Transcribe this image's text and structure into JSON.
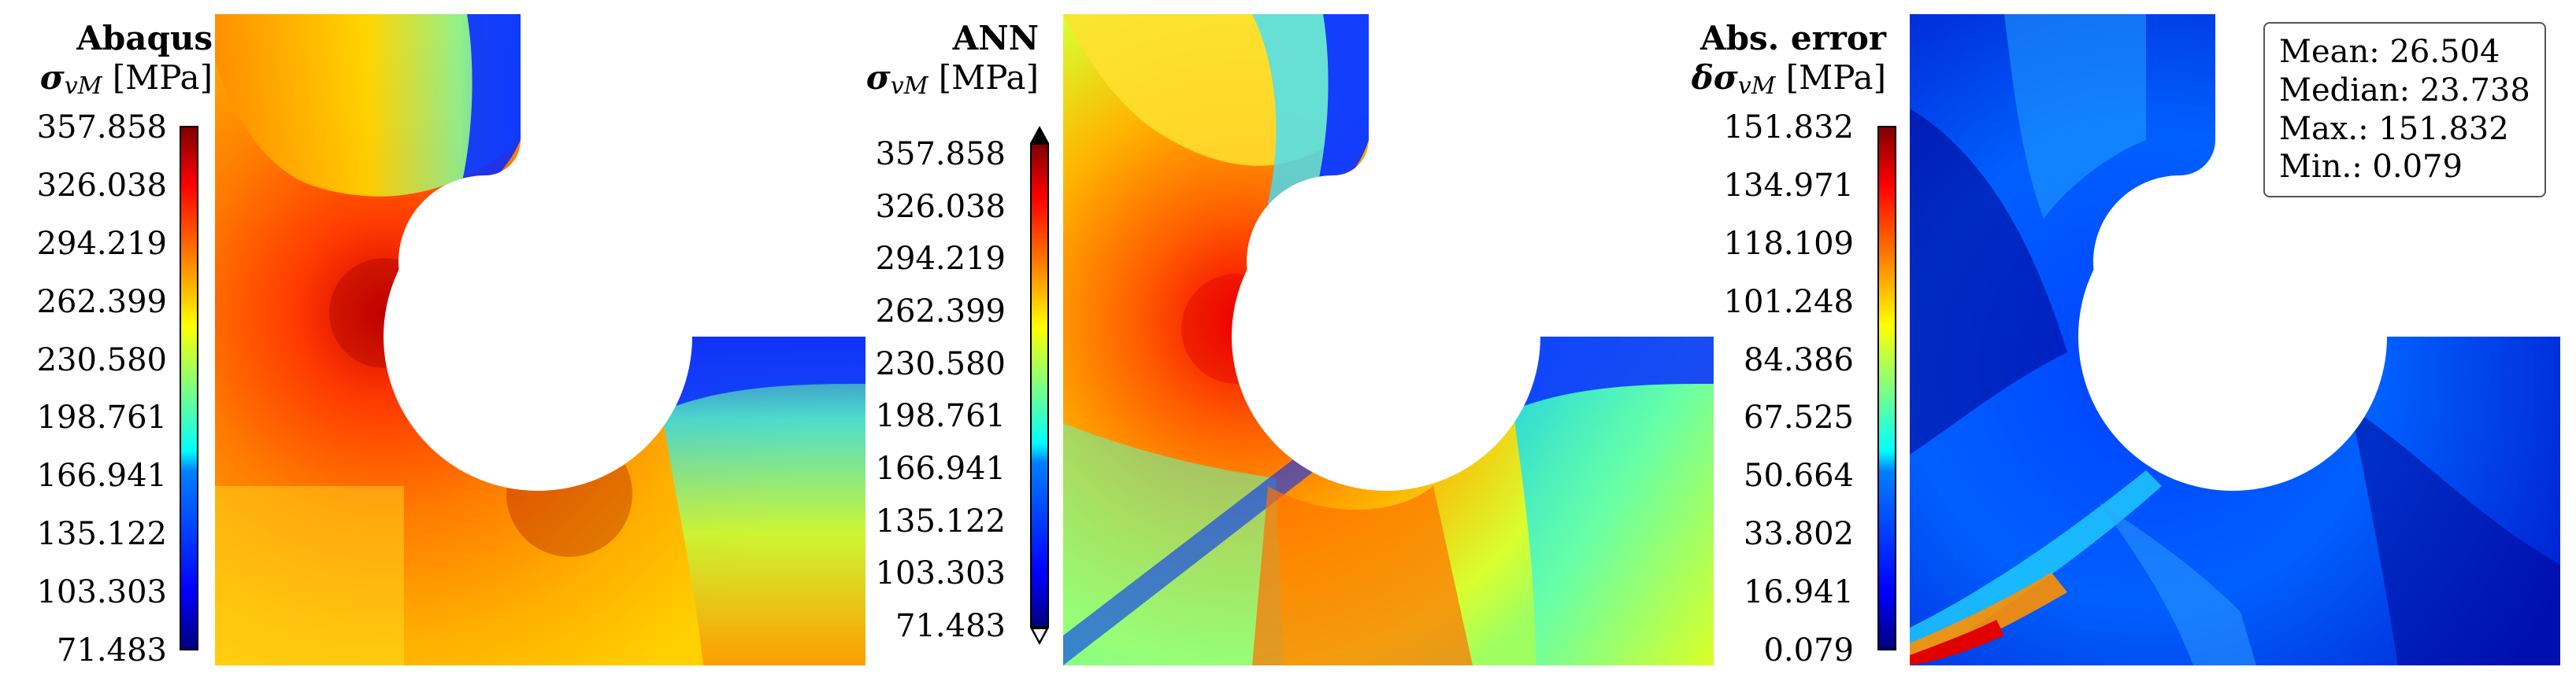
{
  "chart_data": [
    {
      "type": "heatmap",
      "title": "Abaqus",
      "quantity": {
        "symbol": "σ",
        "subscript": "vM",
        "unit": "[MPa]"
      },
      "colorbar": {
        "min": 71.483,
        "max": 357.858,
        "ticks": [
          "357.858",
          "326.038",
          "294.219",
          "262.399",
          "230.580",
          "198.761",
          "166.941",
          "135.122",
          "103.303",
          "71.483"
        ],
        "colormap": "jet"
      }
    },
    {
      "type": "heatmap",
      "title": "ANN",
      "quantity": {
        "symbol": "σ",
        "subscript": "vM",
        "unit": "[MPa]"
      },
      "colorbar": {
        "min": 71.483,
        "max": 357.858,
        "ticks": [
          "357.858",
          "326.038",
          "294.219",
          "262.399",
          "230.580",
          "198.761",
          "166.941",
          "135.122",
          "103.303",
          "71.483"
        ],
        "colormap": "jet",
        "extend": "both"
      }
    },
    {
      "type": "heatmap",
      "title": "Abs. error",
      "quantity": {
        "symbol": "δσ",
        "subscript": "vM",
        "unit": "[MPa]"
      },
      "colorbar": {
        "min": 0.079,
        "max": 151.832,
        "ticks": [
          "151.832",
          "134.971",
          "118.109",
          "101.248",
          "84.386",
          "67.525",
          "50.664",
          "33.802",
          "16.941",
          "0.079"
        ],
        "colormap": "jet"
      },
      "stats": [
        {
          "label": "Mean:",
          "value": "26.504"
        },
        {
          "label": "Median:",
          "value": "23.738"
        },
        {
          "label": "Max.:",
          "value": "151.832"
        },
        {
          "label": "Min.:",
          "value": "0.079"
        }
      ]
    }
  ],
  "colors": {
    "jet_low": "#00007f",
    "jet_mid": "#7fff7f",
    "jet_high": "#7f0000"
  }
}
